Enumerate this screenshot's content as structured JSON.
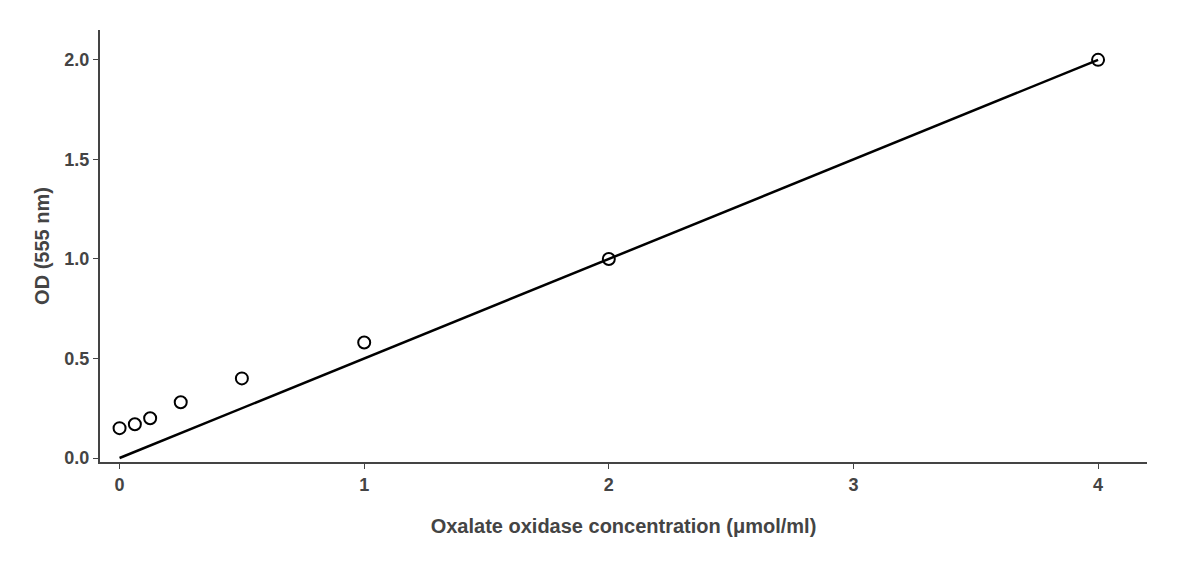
{
  "chart_data": {
    "type": "scatter",
    "xlabel": "Oxalate oxidase concentration (μmol/ml)",
    "ylabel": "OD (555 nm)",
    "series": [
      {
        "type": "line",
        "color": "black",
        "line_style": "solid",
        "x": [
          0,
          4.0
        ],
        "values": [
          0.0,
          2.0
        ]
      },
      {
        "type": "scatter",
        "color": "black",
        "marker": "open circle",
        "x": [
          0,
          0.0625,
          0.125,
          0.25,
          0.5,
          1.0,
          2.0,
          4.0
        ],
        "values": [
          0.15,
          0.17,
          0.2,
          0.28,
          0.4,
          0.58,
          1.0,
          2.0
        ]
      }
    ],
    "xlim": [
      -0.08,
      4.2
    ],
    "ylim": [
      -0.02,
      2.15
    ],
    "xticks": [
      0,
      1,
      2,
      3,
      4
    ],
    "yticks": [
      {
        "value": 0,
        "label": "0.0"
      },
      0.5,
      {
        "value": 1.0,
        "label": "1.0"
      },
      1.5,
      {
        "value": 2.0,
        "label": "2.0"
      }
    ],
    "grid": false
  }
}
